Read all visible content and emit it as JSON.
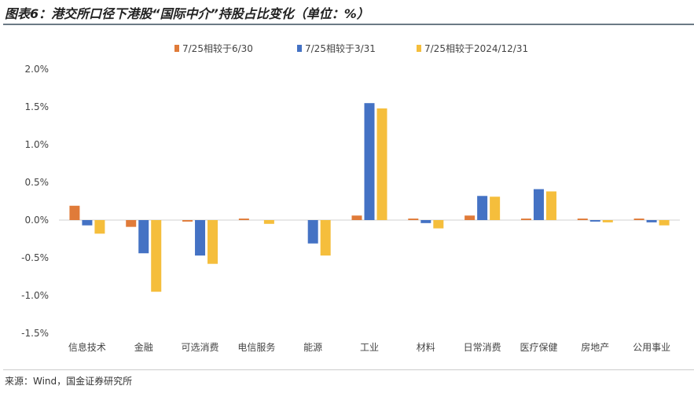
{
  "title": "图表6：港交所口径下港股“国际中介”持股占比变化（单位：%）",
  "source": "来源：Wind，国金证券研究所",
  "chart_data": {
    "type": "bar",
    "categories": [
      "信息技术",
      "金融",
      "可选消费",
      "电信服务",
      "能源",
      "工业",
      "材料",
      "日常消费",
      "医疗保健",
      "房地产",
      "公用事业"
    ],
    "series": [
      {
        "name": "7/25相较于6/30",
        "color": "#E07B39",
        "values": [
          0.19,
          -0.09,
          -0.02,
          0.02,
          0.0,
          0.06,
          0.02,
          0.06,
          0.02,
          0.02,
          0.02
        ]
      },
      {
        "name": "7/25相较于3/31",
        "color": "#4472C4",
        "values": [
          -0.07,
          -0.44,
          -0.47,
          0.0,
          -0.31,
          1.55,
          -0.04,
          0.32,
          0.41,
          -0.02,
          -0.03
        ]
      },
      {
        "name": "7/25相较于2024/12/31",
        "color": "#F5BE3C",
        "values": [
          -0.18,
          -0.95,
          -0.58,
          -0.05,
          -0.47,
          1.48,
          -0.11,
          0.31,
          0.38,
          -0.03,
          -0.07
        ]
      }
    ],
    "yticks": [
      "2.0%",
      "1.5%",
      "1.0%",
      "0.5%",
      "0.0%",
      "-0.5%",
      "-1.0%",
      "-1.5%"
    ],
    "ylim": [
      -1.5,
      2.0
    ],
    "grid": false,
    "legend": "top"
  }
}
